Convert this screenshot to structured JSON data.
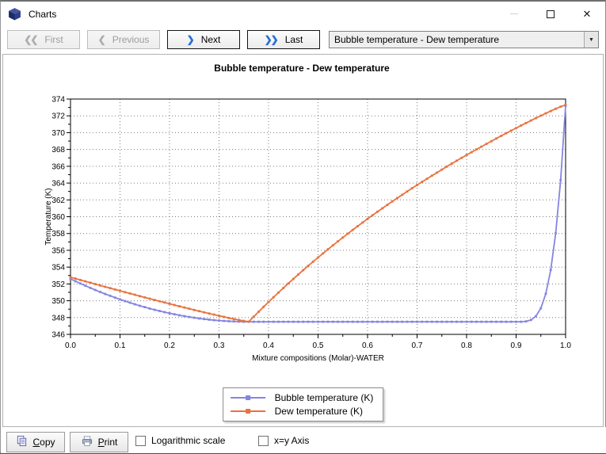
{
  "window": {
    "title": "Charts"
  },
  "icons": {
    "app": "cube-3d",
    "first_chevron": "❮❮",
    "previous_chevron": "❮",
    "next_chevron": "❯",
    "last_chevron": "❯❯",
    "dropdown_arrow": "▼",
    "close": "✕",
    "copy": "copy-pages",
    "print": "printer"
  },
  "toolbar": {
    "first_label": "First",
    "previous_label": "Previous",
    "next_label": "Next",
    "last_label": "Last",
    "first_enabled": false,
    "previous_enabled": false,
    "next_enabled": true,
    "last_enabled": true,
    "chart_selector_value": "Bubble temperature - Dew temperature"
  },
  "footer": {
    "copy_label": "Copy",
    "print_label": "Print",
    "logarithmic_label": "Logarithmic scale",
    "logarithmic_checked": false,
    "xy_axis_label": "x=y Axis",
    "xy_axis_checked": false
  },
  "chart_data": {
    "type": "line",
    "title": "Bubble temperature - Dew temperature",
    "xlabel": "Mixture compositions (Molar)-WATER",
    "ylabel": "Temperature (K)",
    "xlim": [
      0,
      1
    ],
    "ylim": [
      346,
      374
    ],
    "x_ticks": [
      "0.0",
      "0.1",
      "0.2",
      "0.3",
      "0.4",
      "0.5",
      "0.6",
      "0.7",
      "0.8",
      "0.9",
      "1.0"
    ],
    "y_ticks": [
      346,
      348,
      350,
      352,
      354,
      356,
      358,
      360,
      362,
      364,
      366,
      368,
      370,
      372,
      374
    ],
    "x_minor_step": 0.05,
    "y_minor_step": 1,
    "grid": "dotted",
    "legend_position": "bottom-center",
    "x_start": 0,
    "x_step": 0.01,
    "series": [
      {
        "name": "Bubble temperature (K)",
        "color": "#8585e0",
        "marker": "square",
        "values": [
          352.6,
          352.32,
          352.05,
          351.79,
          351.53,
          351.28,
          351.04,
          350.81,
          350.59,
          350.37,
          350.16,
          349.96,
          349.77,
          349.58,
          349.4,
          349.24,
          349.07,
          348.92,
          348.78,
          348.64,
          348.51,
          348.39,
          348.27,
          348.17,
          348.07,
          347.98,
          347.89,
          347.82,
          347.75,
          347.69,
          347.64,
          347.6,
          347.56,
          347.54,
          347.52,
          347.5,
          347.5,
          347.5,
          347.5,
          347.5,
          347.5,
          347.5,
          347.5,
          347.5,
          347.5,
          347.5,
          347.5,
          347.5,
          347.5,
          347.5,
          347.5,
          347.5,
          347.5,
          347.5,
          347.5,
          347.5,
          347.5,
          347.5,
          347.5,
          347.5,
          347.5,
          347.5,
          347.5,
          347.5,
          347.5,
          347.5,
          347.5,
          347.5,
          347.5,
          347.5,
          347.5,
          347.5,
          347.5,
          347.5,
          347.5,
          347.5,
          347.5,
          347.5,
          347.5,
          347.5,
          347.5,
          347.5,
          347.5,
          347.5,
          347.5,
          347.5,
          347.5,
          347.5,
          347.5,
          347.5,
          347.5,
          347.5,
          347.54,
          347.71,
          348.16,
          349.11,
          350.83,
          353.67,
          358.03,
          364.36,
          373.2
        ]
      },
      {
        "name": "Dew temperature (K)",
        "color": "#e8733f",
        "marker": "square",
        "values": [
          352.8,
          352.64,
          352.47,
          352.31,
          352.15,
          351.98,
          351.82,
          351.66,
          351.5,
          351.34,
          351.18,
          351.02,
          350.87,
          350.71,
          350.55,
          350.4,
          350.24,
          350.09,
          349.94,
          349.79,
          349.64,
          349.49,
          349.34,
          349.19,
          349.05,
          348.9,
          348.76,
          348.62,
          348.48,
          348.35,
          348.21,
          348.08,
          347.95,
          347.83,
          347.71,
          347.6,
          347.5,
          348.1,
          348.69,
          349.27,
          349.85,
          350.41,
          350.97,
          351.52,
          352.06,
          352.59,
          353.12,
          353.64,
          354.15,
          354.65,
          355.14,
          355.63,
          356.12,
          356.59,
          357.06,
          357.52,
          357.98,
          358.43,
          358.87,
          359.31,
          359.74,
          360.17,
          360.59,
          361.0,
          361.41,
          361.82,
          362.22,
          362.61,
          363.0,
          363.39,
          363.77,
          364.14,
          364.51,
          364.88,
          365.24,
          365.6,
          365.96,
          366.31,
          366.66,
          367.0,
          367.34,
          367.67,
          368.01,
          368.33,
          368.66,
          368.98,
          369.3,
          369.62,
          369.93,
          370.24,
          370.54,
          370.85,
          371.14,
          371.44,
          371.73,
          372.02,
          372.3,
          372.57,
          372.84,
          373.09,
          373.3
        ]
      }
    ]
  }
}
